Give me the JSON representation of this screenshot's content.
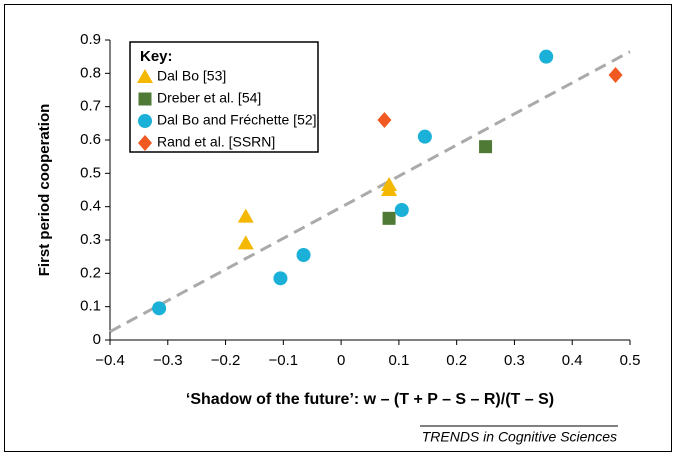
{
  "chart_data": {
    "type": "scatter",
    "x_label": "‘Shadow of the future’: w – (T + P – S – R)/(T – S)",
    "y_label": "First period cooperation",
    "legend_title": "Key:",
    "footer": "TRENDS in Cognitive Sciences",
    "xlim": [
      -0.4,
      0.5
    ],
    "ylim": [
      0,
      0.9
    ],
    "xticks": [
      {
        "value": -0.4,
        "label": "−0.4"
      },
      {
        "value": -0.3,
        "label": "−0.3"
      },
      {
        "value": -0.2,
        "label": "−0.2"
      },
      {
        "value": -0.1,
        "label": "−0.1"
      },
      0,
      0.1,
      0.2,
      0.3,
      0.4,
      0.5
    ],
    "yticks": [
      0,
      0.1,
      0.2,
      0.3,
      0.4,
      0.5,
      0.6,
      0.7,
      0.8,
      0.9
    ],
    "series": [
      {
        "name": "Dal Bo [53]",
        "color": "#f5b800",
        "marker": "triangle",
        "x": [
          -0.165,
          -0.165,
          0.083,
          0.083
        ],
        "values": [
          0.37,
          0.29,
          0.465,
          0.45
        ]
      },
      {
        "name": "Dreber et al. [54]",
        "color": "#4e7a35",
        "marker": "square",
        "x": [
          0.083,
          0.25
        ],
        "values": [
          0.365,
          0.58
        ]
      },
      {
        "name": "Dal Bo and Fréchette [52]",
        "color": "#1ab0d8",
        "marker": "circle",
        "x": [
          -0.315,
          -0.105,
          -0.065,
          0.105,
          0.145,
          0.355
        ],
        "values": [
          0.095,
          0.185,
          0.255,
          0.39,
          0.61,
          0.85
        ]
      },
      {
        "name": "Rand et al. [SSRN]",
        "color": "#f05a22",
        "marker": "diamond",
        "x": [
          0.075,
          0.475
        ],
        "values": [
          0.66,
          0.795
        ]
      }
    ],
    "trendline": {
      "color": "#aaaaaa",
      "x": [
        -0.4,
        0.5
      ],
      "values": [
        0.025,
        0.865
      ]
    }
  }
}
